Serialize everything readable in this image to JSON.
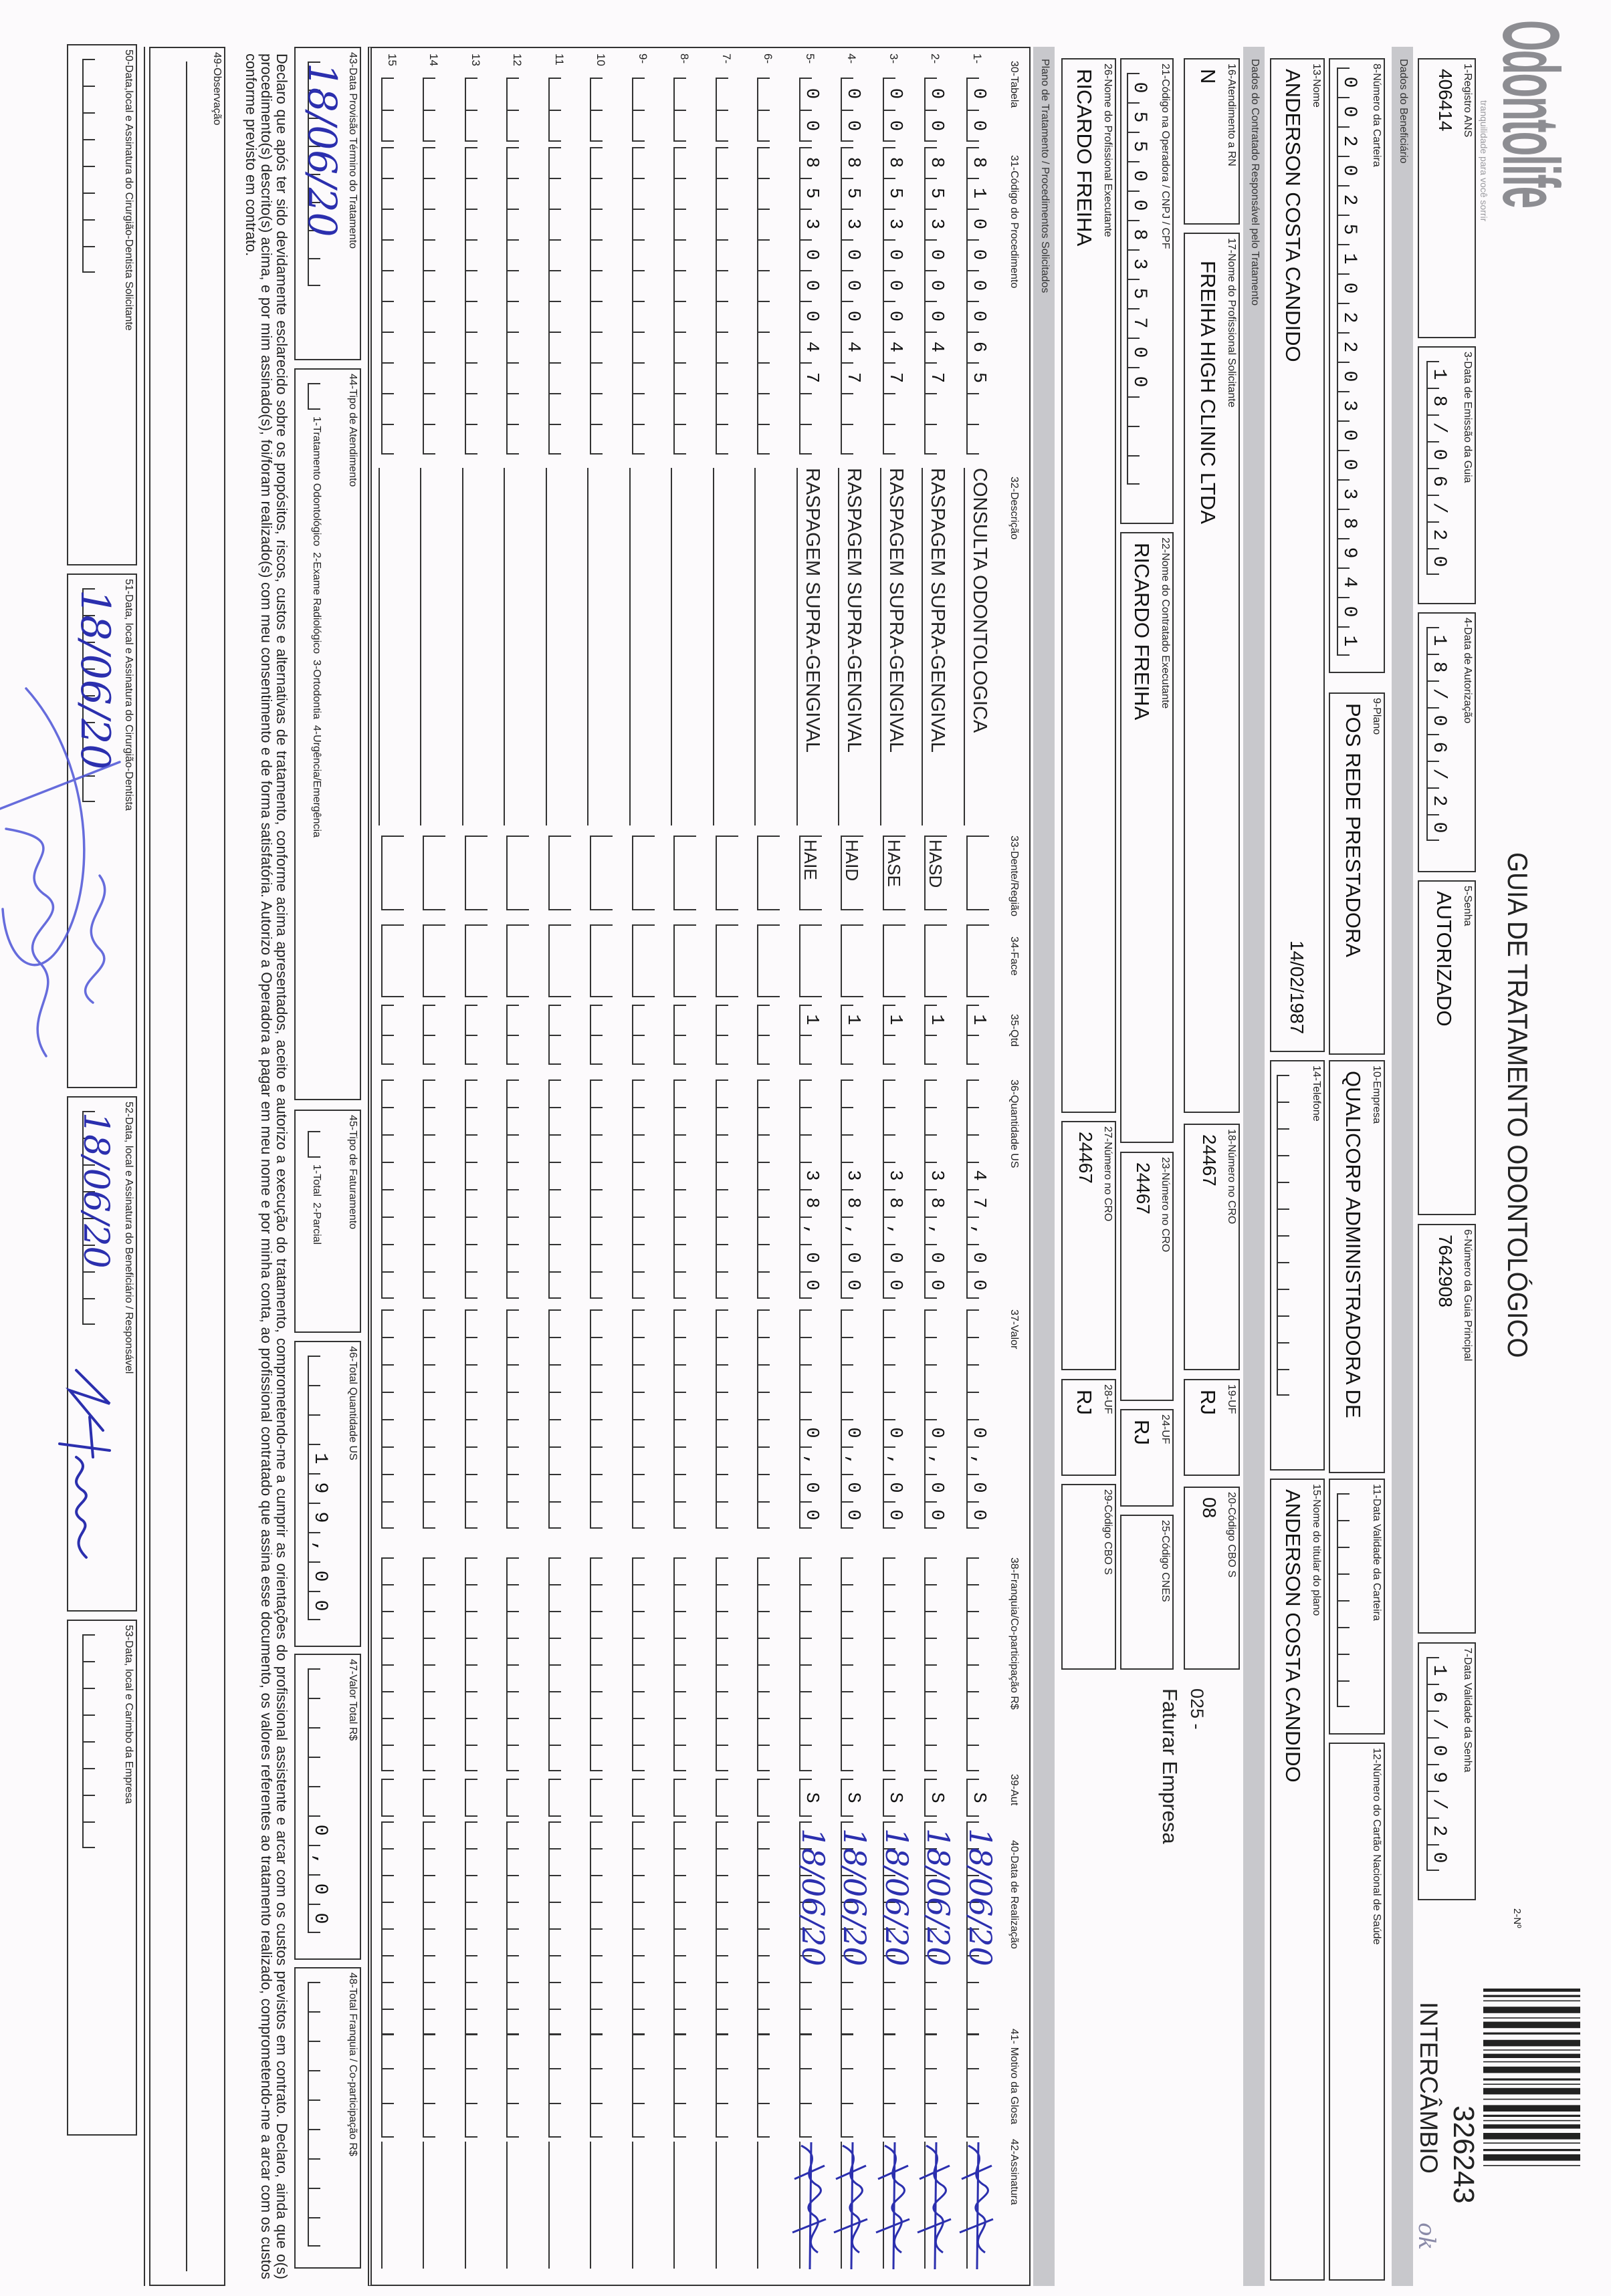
{
  "logo": {
    "brand": "Odontolife",
    "tagline": "tranquilidade para você sorrir"
  },
  "title": "GUIA DE TRATAMENTO ODONTOLÓGICO",
  "guide": {
    "label": "2-Nº",
    "number": "326243",
    "type": "INTERCÂMBIO",
    "note": "ok"
  },
  "sections": {
    "beneficiary": "Dados do Beneficiário",
    "contractor": "Dados do Contratado Responsável pelo Tratamento",
    "plan": "Plano de Tratamento / Procedimentos Solicitados"
  },
  "fields": {
    "f1": {
      "label": "1-Registro ANS",
      "value": "406414"
    },
    "f3": {
      "label": "3-Data de Emissão da Guia",
      "value": "18/06/20"
    },
    "f4": {
      "label": "4-Data de Autorização",
      "value": "18/06/20"
    },
    "f5": {
      "label": "5-Senha",
      "value": "AUTORIZADO"
    },
    "f6": {
      "label": "6-Número da Guia Principal",
      "value": "7642908"
    },
    "f7": {
      "label": "7-Data Validade da Senha",
      "value": "16/09/20"
    },
    "f8": {
      "label": "8-Número da Carteira",
      "value": "00202510220300389401"
    },
    "f9": {
      "label": "9-Plano",
      "value": "POS REDE PRESTADORA"
    },
    "f10": {
      "label": "10-Empresa",
      "value": "QUALICORP ADMINISTRADORA DE"
    },
    "f11": {
      "label": "11-Data Validade da Carteira",
      "value": ""
    },
    "f12": {
      "label": "12-Número do Cartão Nacional de Saúde",
      "value": ""
    },
    "f13": {
      "label": "13-Nome",
      "value": "ANDERSON COSTA CANDIDO",
      "birth_date": "14/02/1987"
    },
    "f14": {
      "label": "14-Telefone",
      "value": ""
    },
    "f15": {
      "label": "15-Nome do titular do plano",
      "value": "ANDERSON COSTA CANDIDO"
    },
    "f16": {
      "label": "16-Atendimento a RN",
      "value": "N"
    },
    "f17": {
      "label": "17-Nome do Profissional Solicitante",
      "value": "FREIHA HIGH CLINIC LTDA"
    },
    "f18": {
      "label": "18-Número no CRO",
      "value": "24467"
    },
    "f19": {
      "label": "19-UF",
      "value": "RJ"
    },
    "f20": {
      "label": "20-Código CBO S",
      "value": "08"
    },
    "billing_code": "025 -",
    "billing_note": "Faturar Empresa",
    "f21": {
      "label": "21-Código na Operadora / CNPJ / CPF",
      "value": "05500835700"
    },
    "f22": {
      "label": "22-Nome do Contratado Executante",
      "value": "RICARDO FREIHA"
    },
    "f23": {
      "label": "23-Número no CRO",
      "value": "24467"
    },
    "f24": {
      "label": "24-UF",
      "value": "RJ"
    },
    "f25": {
      "label": "25-Código CNES",
      "value": ""
    },
    "f26": {
      "label": "26-Nome do Profissional Executante",
      "value": "RICARDO FREIHA"
    },
    "f27": {
      "label": "27-Número no CRO",
      "value": "24467"
    },
    "f28": {
      "label": "28-UF",
      "value": "RJ"
    },
    "f29": {
      "label": "29-Código CBO S",
      "value": ""
    }
  },
  "table": {
    "columns": [
      "30-Tabela",
      "31-Código do Procedimento",
      "32-Descrição",
      "33-Dente/Região",
      "34-Face",
      "35-Qtd",
      "36-Quantidade US",
      "37-Valor",
      "38-Franquia/Co-participação R$",
      "39-Aut",
      "40-Data de Realização",
      "41- Motivo da Glosa",
      "42-Assinatura"
    ],
    "rows": [
      {
        "n": "1-",
        "tabela": "00",
        "codigo": "81000065",
        "descricao": "CONSULTA ODONTOLOGICA",
        "dente": "",
        "face": "",
        "qtd": "1",
        "qtd_us": "47,00",
        "valor": "0,00",
        "franquia": "",
        "aut": "S",
        "data": "18/06/20",
        "glosa": "",
        "signed": true
      },
      {
        "n": "2-",
        "tabela": "00",
        "codigo": "85300047",
        "descricao": "RASPAGEM SUPRA-GENGIVAL",
        "dente": "HASD",
        "face": "",
        "qtd": "1",
        "qtd_us": "38,00",
        "valor": "0,00",
        "franquia": "",
        "aut": "S",
        "data": "18/06/20",
        "glosa": "",
        "signed": true
      },
      {
        "n": "3-",
        "tabela": "00",
        "codigo": "85300047",
        "descricao": "RASPAGEM SUPRA-GENGIVAL",
        "dente": "HASE",
        "face": "",
        "qtd": "1",
        "qtd_us": "38,00",
        "valor": "0,00",
        "franquia": "",
        "aut": "S",
        "data": "18/06/20",
        "glosa": "",
        "signed": true
      },
      {
        "n": "4-",
        "tabela": "00",
        "codigo": "85300047",
        "descricao": "RASPAGEM SUPRA-GENGIVAL",
        "dente": "HAID",
        "face": "",
        "qtd": "1",
        "qtd_us": "38,00",
        "valor": "0,00",
        "franquia": "",
        "aut": "S",
        "data": "18/06/20",
        "glosa": "",
        "signed": true
      },
      {
        "n": "5-",
        "tabela": "00",
        "codigo": "85300047",
        "descricao": "RASPAGEM SUPRA-GENGIVAL",
        "dente": "HAIE",
        "face": "",
        "qtd": "1",
        "qtd_us": "38,00",
        "valor": "0,00",
        "franquia": "",
        "aut": "S",
        "data": "18/06/20",
        "glosa": "",
        "signed": true
      },
      {
        "n": "6-"
      },
      {
        "n": "7-"
      },
      {
        "n": "8-"
      },
      {
        "n": "9-"
      },
      {
        "n": "10"
      },
      {
        "n": "11"
      },
      {
        "n": "12"
      },
      {
        "n": "13"
      },
      {
        "n": "14"
      },
      {
        "n": "15"
      }
    ]
  },
  "footer": {
    "f43": {
      "label": "43-Data Provisão Término do Tratamento",
      "value": "18/06/20"
    },
    "f44": {
      "label": "44-Tipo de Atendimento",
      "options": "1-Tratamento Odontológico  2-Exame Radiológico  3-Ortodontia  4-Urgência/Emergência",
      "value": ""
    },
    "f45": {
      "label": "45-Tipo de Faturamento",
      "options": "1-Total  2-Parcial",
      "value": ""
    },
    "f46": {
      "label": "46-Total Quantidade US",
      "value": "199,00"
    },
    "f47": {
      "label": "47-Valor Total R$",
      "value": "0,00"
    },
    "f48": {
      "label": "48-Total Franquia / Co-participação R$",
      "value": ""
    },
    "declaration": "Declaro que após ter sido devidamente esclarecido sobre os propósitos, riscos, custos e alternativas de tratamento, conforme acima apresentados, aceito e autorizo a execução do tratamento, comprometendo-me a cumprir as orientações do profissional assistente e arcar com os custos previstos em contrato. Declaro, ainda que o(s) procedimento(s) descrito(s) acima, e por mim assinado(s), foi/foram realizado(s) com meu consentimento e de forma satisfatória. Autorizo a Operadora a pagar em meu nome e por minha conta, ao profissional contratado que assina esse documento, os valores referentes ao tratamento realizado, comprometendo-me a arcar com os custos conforme previsto em contrato.",
    "f49": {
      "label": "49-Observação",
      "value": ""
    },
    "f50": {
      "label": "50-Data,local e Assinatura do Cirurgião-Dentista Solicitante",
      "value": ""
    },
    "f51": {
      "label": "51-Data, local e Assinatura do Cirurgião-Dentista",
      "value": "18/06/20"
    },
    "f52": {
      "label": "52-Data, local e Assinatura do Beneficiário / Responsável",
      "value": "18/06/20"
    },
    "f53": {
      "label": "53-Data, local e Carimbo da Empresa",
      "value": ""
    }
  },
  "colors": {
    "ink": "#2b2fae",
    "section_bar": "#c8c8cc",
    "line": "#333333"
  }
}
